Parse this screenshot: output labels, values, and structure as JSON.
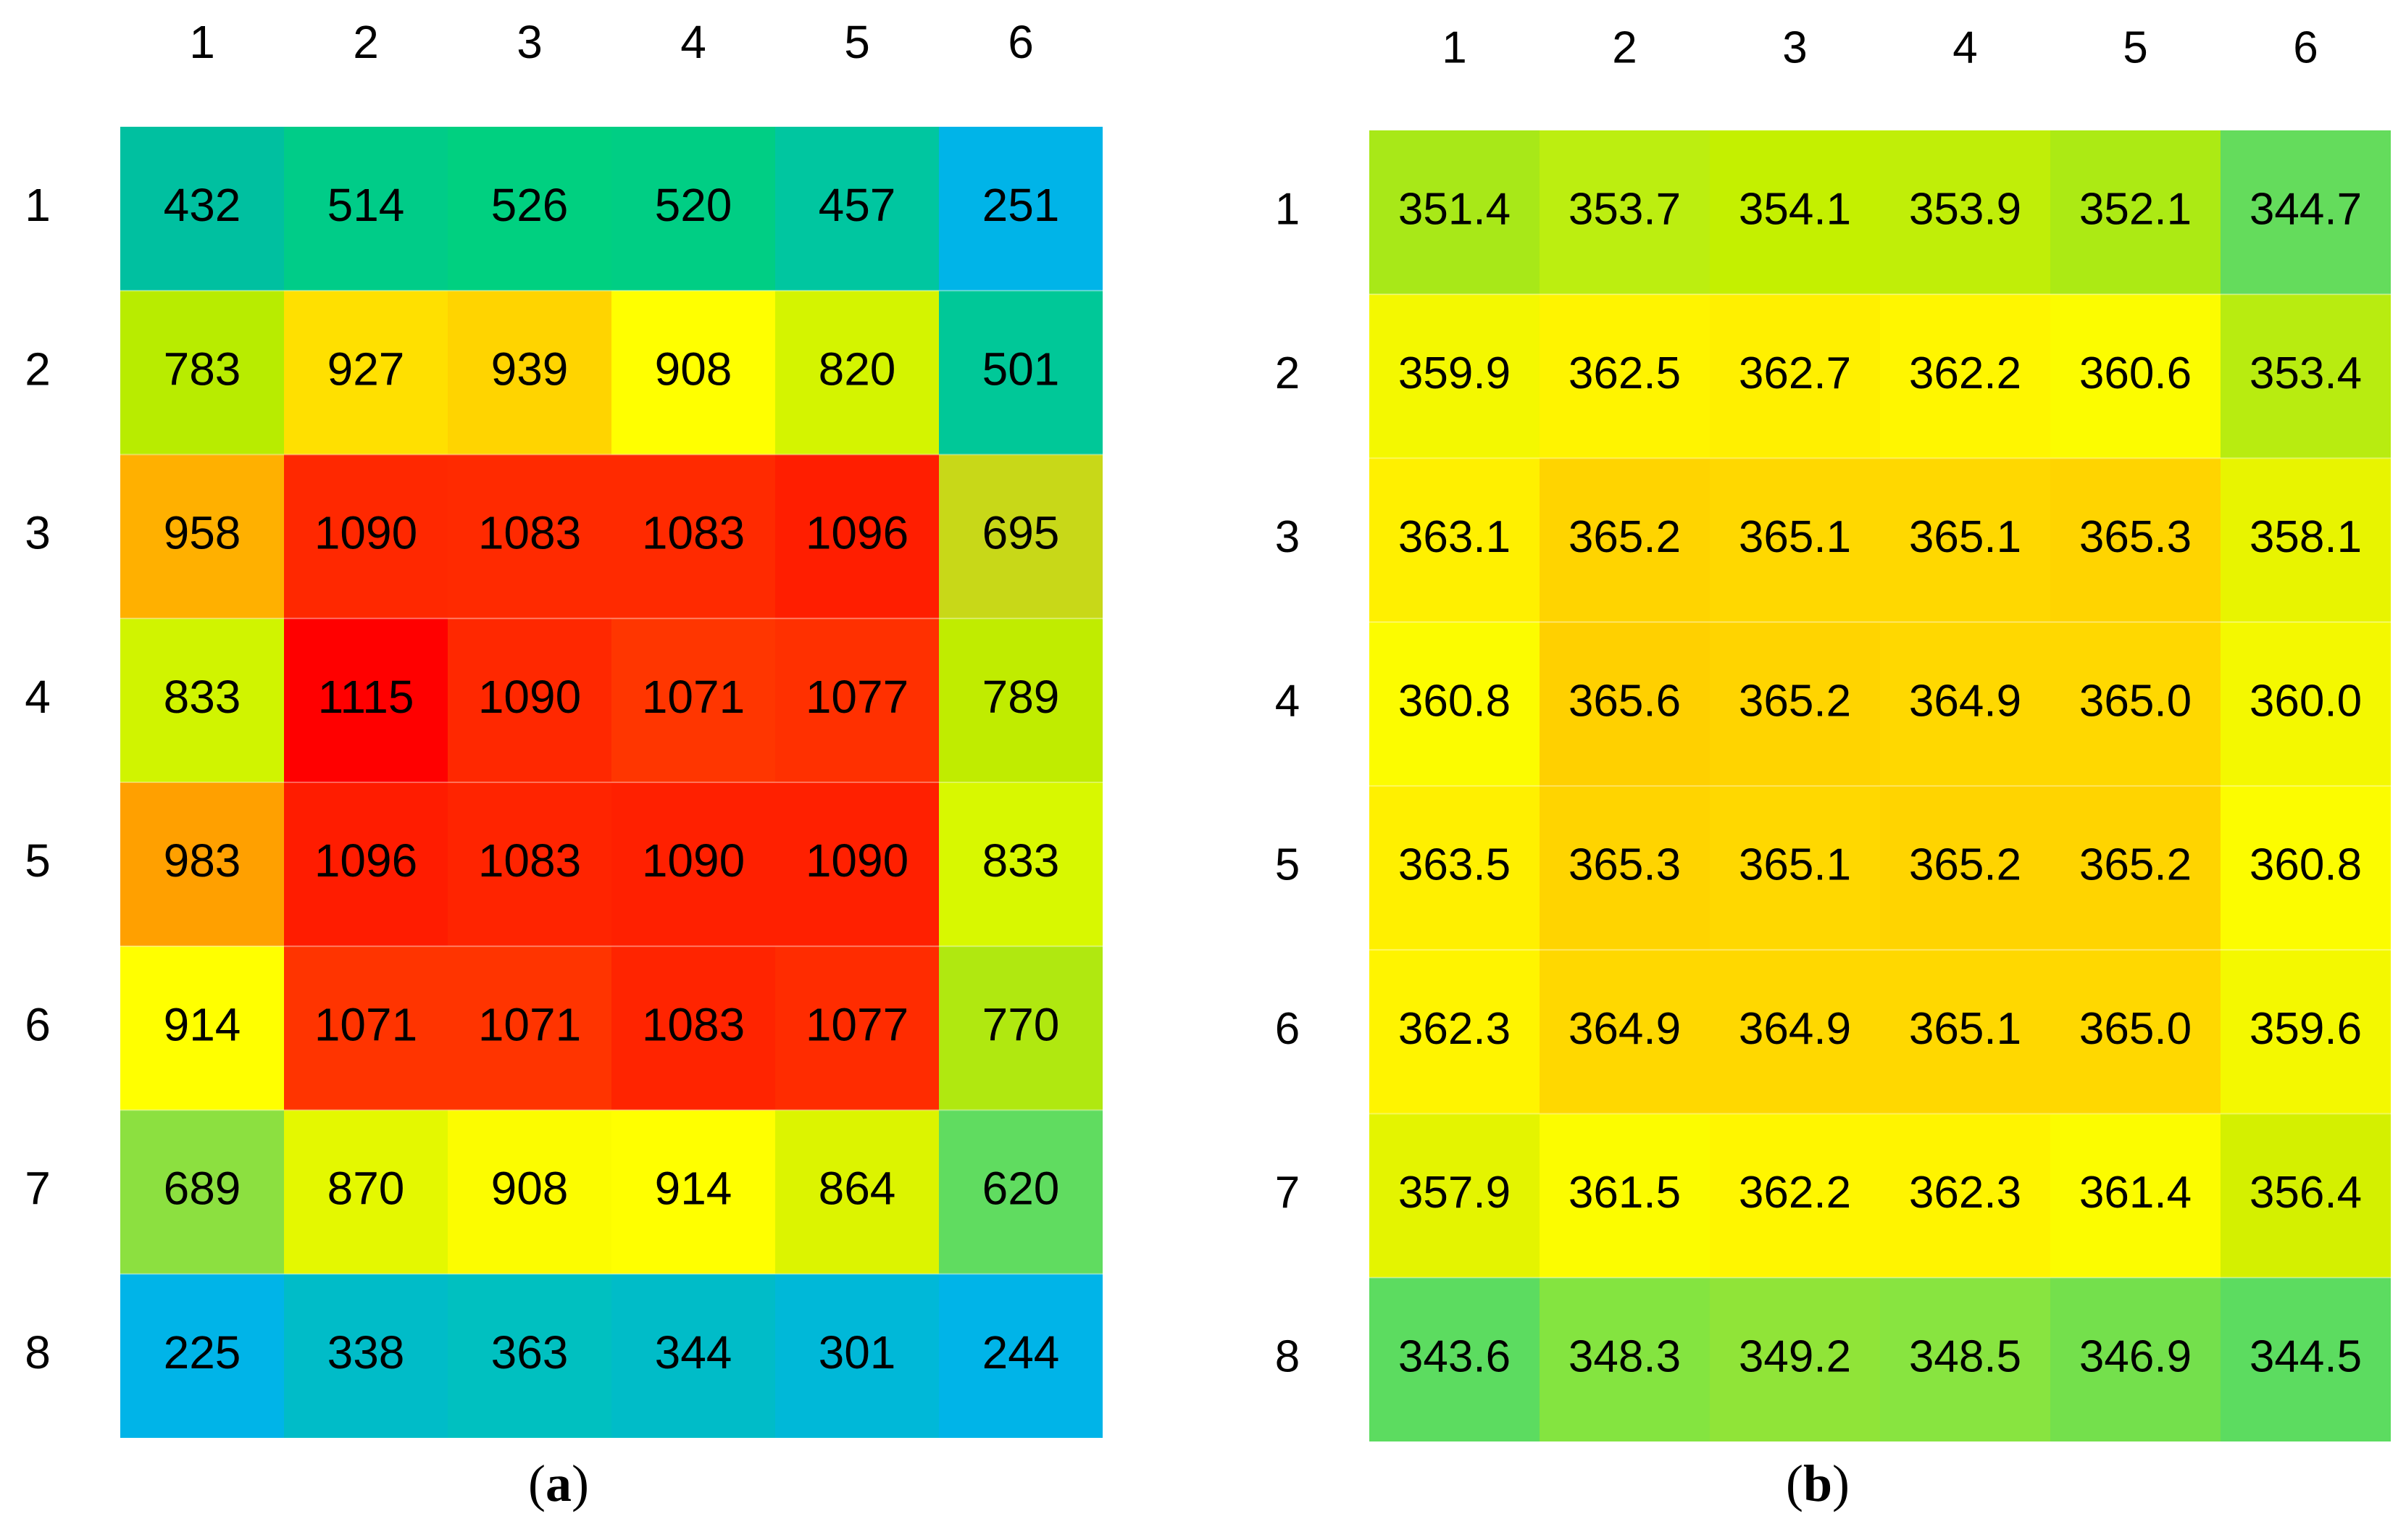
{
  "chart_data": [
    {
      "type": "heatmap",
      "panel_label": "a",
      "columns": [
        "1",
        "2",
        "3",
        "4",
        "5",
        "6"
      ],
      "rows": [
        "1",
        "2",
        "3",
        "4",
        "5",
        "6",
        "7",
        "8"
      ],
      "values": [
        [
          432,
          514,
          526,
          520,
          457,
          251
        ],
        [
          783,
          927,
          939,
          908,
          820,
          501
        ],
        [
          958,
          1090,
          1083,
          1083,
          1096,
          695
        ],
        [
          833,
          1115,
          1090,
          1071,
          1077,
          789
        ],
        [
          983,
          1096,
          1083,
          1090,
          1090,
          833
        ],
        [
          914,
          1071,
          1071,
          1083,
          1077,
          770
        ],
        [
          689,
          870,
          908,
          914,
          864,
          620
        ],
        [
          225,
          338,
          363,
          344,
          301,
          244
        ]
      ],
      "labels": [
        [
          "432",
          "514",
          "526",
          "520",
          "457",
          "251"
        ],
        [
          "783",
          "927",
          "939",
          "908",
          "820",
          "501"
        ],
        [
          "958",
          "1090",
          "1083",
          "1083",
          "1096",
          "695"
        ],
        [
          "833",
          "1115",
          "1090",
          "1071",
          "1077",
          "789"
        ],
        [
          "983",
          "1096",
          "1083",
          "1090",
          "1090",
          "833"
        ],
        [
          "914",
          "1071",
          "1071",
          "1083",
          "1077",
          "770"
        ],
        [
          "689",
          "870",
          "908",
          "914",
          "864",
          "620"
        ],
        [
          "225",
          "338",
          "363",
          "344",
          "301",
          "244"
        ]
      ],
      "colors": [
        [
          "#00c0a0",
          "#00cc88",
          "#00d080",
          "#00ce84",
          "#00c6a0",
          "#00b4e8"
        ],
        [
          "#b8ec00",
          "#ffe000",
          "#ffd400",
          "#ffff00",
          "#d4f400",
          "#00c898"
        ],
        [
          "#ffb000",
          "#ff2800",
          "#ff2a00",
          "#ff2a00",
          "#ff1e00",
          "#c8d818"
        ],
        [
          "#d0f400",
          "#ff0000",
          "#ff2800",
          "#ff3600",
          "#ff3000",
          "#c0ec00"
        ],
        [
          "#ffa000",
          "#ff1c00",
          "#ff2400",
          "#ff2000",
          "#ff2000",
          "#d8f800"
        ],
        [
          "#ffff00",
          "#ff3400",
          "#ff3400",
          "#ff2400",
          "#ff2c00",
          "#b0e810"
        ],
        [
          "#8ce040",
          "#e4f800",
          "#fcfc00",
          "#ffff00",
          "#dcf400",
          "#60dc60"
        ],
        [
          "#00b4e8",
          "#00bcc8",
          "#00c0c0",
          "#00bcc8",
          "#00b8d8",
          "#00b4e8"
        ]
      ]
    },
    {
      "type": "heatmap",
      "panel_label": "b",
      "columns": [
        "1",
        "2",
        "3",
        "4",
        "5",
        "6"
      ],
      "rows": [
        "1",
        "2",
        "3",
        "4",
        "5",
        "6",
        "7",
        "8"
      ],
      "values": [
        [
          351.4,
          353.7,
          354.1,
          353.9,
          352.1,
          344.7
        ],
        [
          359.9,
          362.5,
          362.7,
          362.2,
          360.6,
          353.4
        ],
        [
          363.1,
          365.2,
          365.1,
          365.1,
          365.3,
          358.1
        ],
        [
          360.8,
          365.6,
          365.2,
          364.9,
          365.0,
          360.0
        ],
        [
          363.5,
          365.3,
          365.1,
          365.2,
          365.2,
          360.8
        ],
        [
          362.3,
          364.9,
          364.9,
          365.1,
          365.0,
          359.6
        ],
        [
          357.9,
          361.5,
          362.2,
          362.3,
          361.4,
          356.4
        ],
        [
          343.6,
          348.3,
          349.2,
          348.5,
          346.9,
          344.5
        ]
      ],
      "labels": [
        [
          "351.4",
          "353.7",
          "354.1",
          "353.9",
          "352.1",
          "344.7"
        ],
        [
          "359.9",
          "362.5",
          "362.7",
          "362.2",
          "360.6",
          "353.4"
        ],
        [
          "363.1",
          "365.2",
          "365.1",
          "365.1",
          "365.3",
          "358.1"
        ],
        [
          "360.8",
          "365.6",
          "365.2",
          "364.9",
          "365.0",
          "360.0"
        ],
        [
          "363.5",
          "365.3",
          "365.1",
          "365.2",
          "365.2",
          "360.8"
        ],
        [
          "362.3",
          "364.9",
          "364.9",
          "365.1",
          "365.0",
          "359.6"
        ],
        [
          "357.9",
          "361.5",
          "362.2",
          "362.3",
          "361.4",
          "356.4"
        ],
        [
          "343.6",
          "348.3",
          "349.2",
          "348.5",
          "346.9",
          "344.5"
        ]
      ],
      "colors": [
        [
          "#a8e818",
          "#bcee10",
          "#c4f000",
          "#c0ee08",
          "#acea14",
          "#64dc5c"
        ],
        [
          "#f4f800",
          "#fff400",
          "#fff000",
          "#fff600",
          "#fcfc00",
          "#b8ec10"
        ],
        [
          "#fff000",
          "#ffd400",
          "#ffd800",
          "#ffd800",
          "#ffd400",
          "#e8f400"
        ],
        [
          "#fcfc00",
          "#ffd000",
          "#ffd400",
          "#ffd800",
          "#ffd800",
          "#f4f800"
        ],
        [
          "#fff000",
          "#ffd400",
          "#ffd800",
          "#ffd400",
          "#ffd400",
          "#fcfc00"
        ],
        [
          "#fff400",
          "#ffd800",
          "#ffd800",
          "#ffd800",
          "#ffd800",
          "#f4f800"
        ],
        [
          "#e4f400",
          "#fcfc00",
          "#fff600",
          "#fff400",
          "#fcfc00",
          "#d4f000"
        ],
        [
          "#5cdc60",
          "#84e440",
          "#90e438",
          "#88e440",
          "#74e04c",
          "#5cdc60"
        ]
      ]
    }
  ],
  "captions": {
    "a_open": "(",
    "a_letter": "a",
    "a_close": ")",
    "b_open": "(",
    "b_letter": "b",
    "b_close": ")"
  }
}
